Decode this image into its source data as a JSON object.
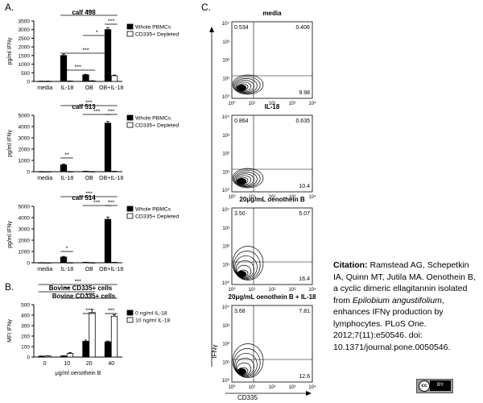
{
  "panels": {
    "a": "A.",
    "b": "B.",
    "c": "C."
  },
  "panel_a": {
    "ylabel": "pg/ml IFNγ",
    "legend": [
      "Whole PBMCs",
      "CD335+ Depleted"
    ],
    "categories": [
      "media",
      "IL-18",
      "OB",
      "OB+IL-18"
    ]
  },
  "panel_b": {
    "title": "Bovine CD335+ cells",
    "ylabel": "MFI IFNγ",
    "xlabel": "μg/ml oenothein B",
    "legend": [
      "0 ng/ml IL-18",
      "10 ng/ml IL-18"
    ]
  },
  "panel_c": {
    "ylabel": "IFNγ",
    "xlabel": "CD335",
    "y_ticks": [
      "10⁴",
      "10³",
      "10²",
      "10¹",
      "10⁰"
    ],
    "x_ticks": [
      "10⁰",
      "10¹",
      "10²",
      "10³",
      "10⁴"
    ],
    "plots": [
      {
        "title": "media",
        "q_ul": "0.534",
        "q_ur": "0.406",
        "q_lr": "9.98"
      },
      {
        "title": "IL-18",
        "q_ul": "0.864",
        "q_ur": "0.635",
        "q_lr": "10.4"
      },
      {
        "title": "20μg/mL oenothein B",
        "q_ul": "3.50",
        "q_ur": "5.07",
        "q_lr": "16.4"
      },
      {
        "title": "20μg/mL oenothein B + IL-18",
        "q_ul": "3.68",
        "q_ur": "7.81",
        "q_lr": "12.6"
      }
    ]
  },
  "citation": {
    "label": "Citation:",
    "text1": " Ramstead AG, Schepetkin IA, Quinn MT, Jutila MA. Oenothein B, a cyclic dimeric ellagitannin isolated from ",
    "species": "Epilobium angustifolium",
    "text2": ", enhances IFNγ production by lymphocytes. PLoS One. 2012;7(11):e50546. doi: 10.1371/journal.pone.0050546."
  },
  "license_badge": {
    "cc": "cc",
    "by": "BY"
  },
  "chart_data": [
    {
      "type": "bar",
      "title": "calf 498",
      "ylabel": "pg/ml IFNγ",
      "categories": [
        "media",
        "IL-18",
        "OB",
        "OB+IL-18"
      ],
      "yticks": [
        0,
        500,
        1000,
        1500,
        2000,
        2500,
        3000,
        3500
      ],
      "ylim": [
        0,
        3500
      ],
      "series": [
        {
          "name": "Whole PBMCs",
          "values": [
            10,
            1500,
            380,
            3000
          ],
          "errors": [
            5,
            80,
            30,
            100
          ]
        },
        {
          "name": "CD335+ Depleted",
          "values": [
            10,
            20,
            30,
            330
          ],
          "errors": [
            5,
            5,
            10,
            40
          ]
        }
      ],
      "significance": [
        "***",
        "***",
        "*",
        "***",
        "***"
      ]
    },
    {
      "type": "bar",
      "title": "calf 513",
      "ylabel": "pg/ml IFNγ",
      "categories": [
        "media",
        "IL-18",
        "OB",
        "OB+IL-18"
      ],
      "yticks": [
        0,
        1000,
        2000,
        3000,
        4000,
        5000
      ],
      "ylim": [
        0,
        5000
      ],
      "series": [
        {
          "name": "Whole PBMCs",
          "values": [
            10,
            600,
            40,
            4300
          ],
          "errors": [
            5,
            80,
            10,
            150
          ]
        },
        {
          "name": "CD335+ Depleted",
          "values": [
            5,
            10,
            10,
            30
          ],
          "errors": [
            2,
            5,
            5,
            10
          ]
        }
      ],
      "significance": [
        "**",
        "***",
        "***",
        "***"
      ]
    },
    {
      "type": "bar",
      "title": "calf 514",
      "ylabel": "pg/ml IFNγ",
      "categories": [
        "media",
        "IL-18",
        "OB",
        "OB+IL-18"
      ],
      "yticks": [
        0,
        1000,
        2000,
        3000,
        4000,
        5000
      ],
      "ylim": [
        0,
        5000
      ],
      "series": [
        {
          "name": "Whole PBMCs",
          "values": [
            10,
            500,
            40,
            3850
          ],
          "errors": [
            5,
            60,
            10,
            200
          ]
        },
        {
          "name": "CD335+ Depleted",
          "values": [
            5,
            10,
            10,
            30
          ],
          "errors": [
            2,
            5,
            5,
            10
          ]
        }
      ],
      "significance": [
        "*",
        "***",
        "***",
        "***"
      ]
    },
    {
      "type": "bar",
      "title": "Bovine CD335+ cells",
      "ylabel": "MFI IFNγ",
      "xlabel": "μg/ml oenothein B",
      "categories": [
        "0",
        "10",
        "20",
        "40"
      ],
      "yticks": [
        0,
        100,
        200,
        300,
        400,
        500
      ],
      "ylim": [
        0,
        500
      ],
      "series": [
        {
          "name": "0 ng/ml IL-18",
          "values": [
            8,
            10,
            150,
            145
          ],
          "errors": [
            2,
            3,
            12,
            8
          ]
        },
        {
          "name": "10 ng/ml IL-18",
          "values": [
            10,
            35,
            425,
            390
          ],
          "errors": [
            2,
            8,
            30,
            15
          ]
        }
      ],
      "significance": [
        "***",
        "***",
        "***",
        "***",
        "***"
      ]
    }
  ]
}
